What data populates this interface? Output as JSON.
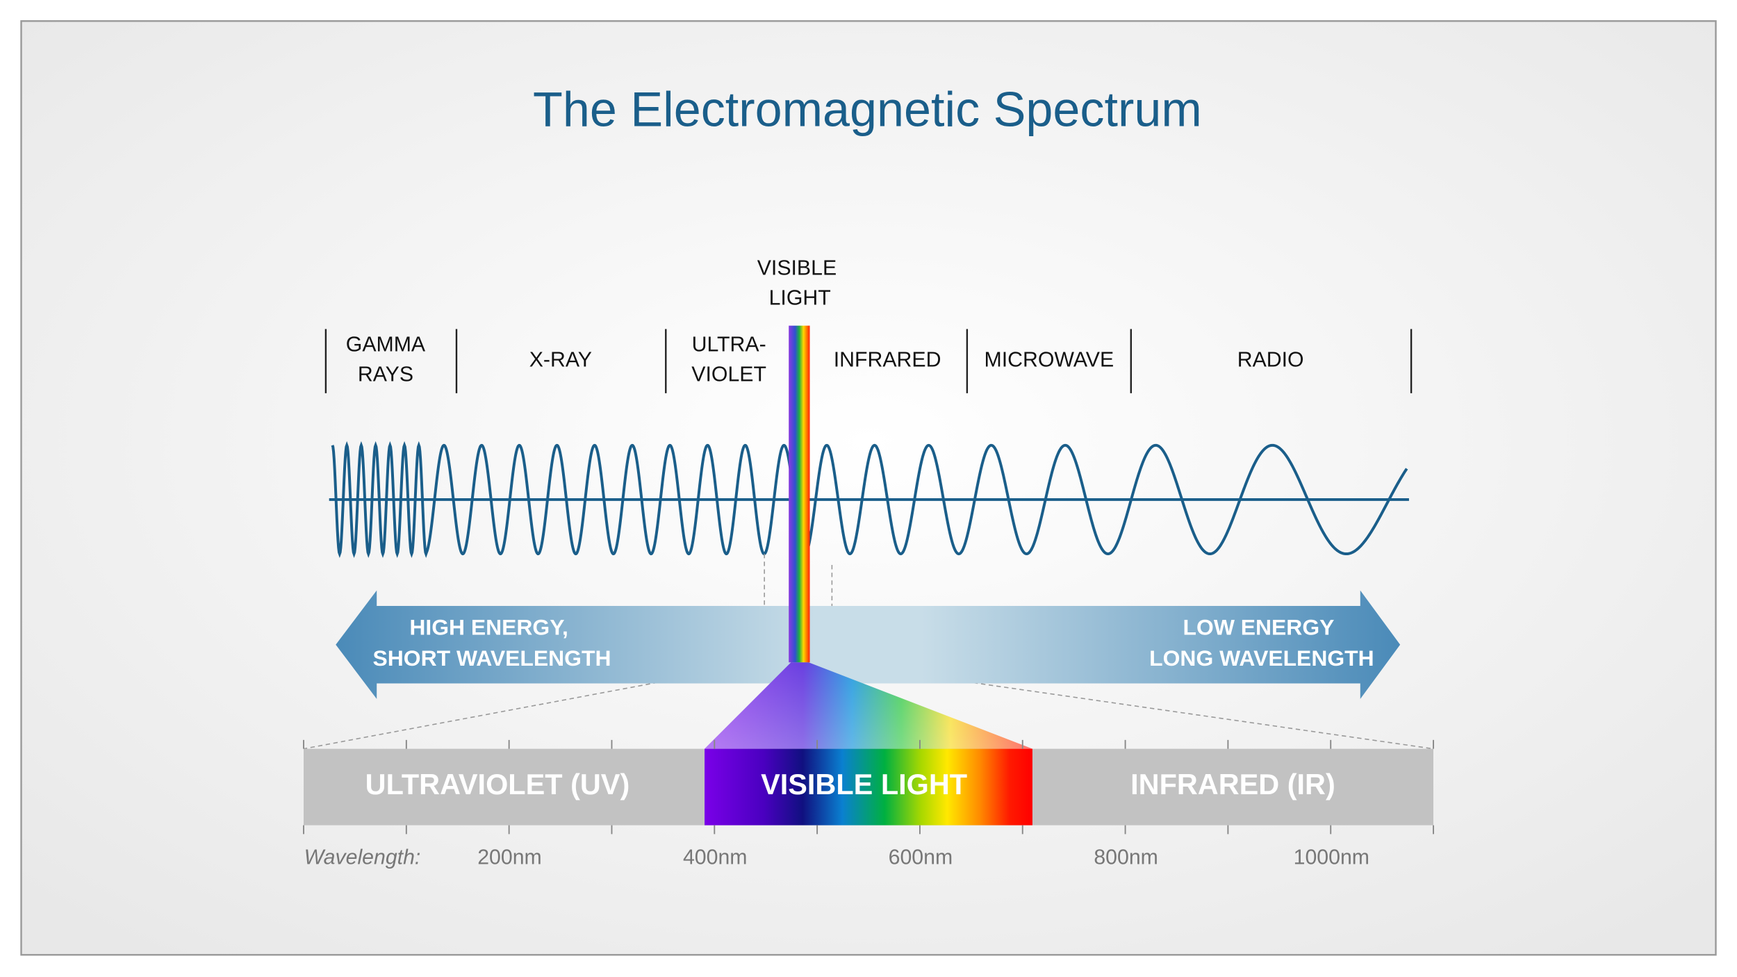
{
  "title": "The Electromagnetic Spectrum",
  "visible": {
    "lines": [
      "VISIBLE",
      "LIGHT"
    ]
  },
  "bands": [
    {
      "lines": [
        "GAMMA",
        "RAYS"
      ]
    },
    {
      "lines": [
        "X-RAY"
      ]
    },
    {
      "lines": [
        "ULTRA-",
        "VIOLET"
      ]
    },
    {
      "lines": [
        "INFRARED"
      ]
    },
    {
      "lines": [
        "MICROWAVE"
      ]
    },
    {
      "lines": [
        "RADIO"
      ]
    }
  ],
  "arrow": {
    "left": [
      "HIGH ENERGY,",
      "SHORT WAVELENGTH"
    ],
    "right": [
      "LOW ENERGY",
      "LONG WAVELENGTH"
    ]
  },
  "bar": {
    "segments": [
      "ULTRAVIOLET (UV)",
      "VISIBLE LIGHT",
      "INFRARED (IR)"
    ]
  },
  "axis": {
    "label": "Wavelength:",
    "ticks": [
      "200nm",
      "400nm",
      "600nm",
      "800nm",
      "1000nm"
    ]
  }
}
